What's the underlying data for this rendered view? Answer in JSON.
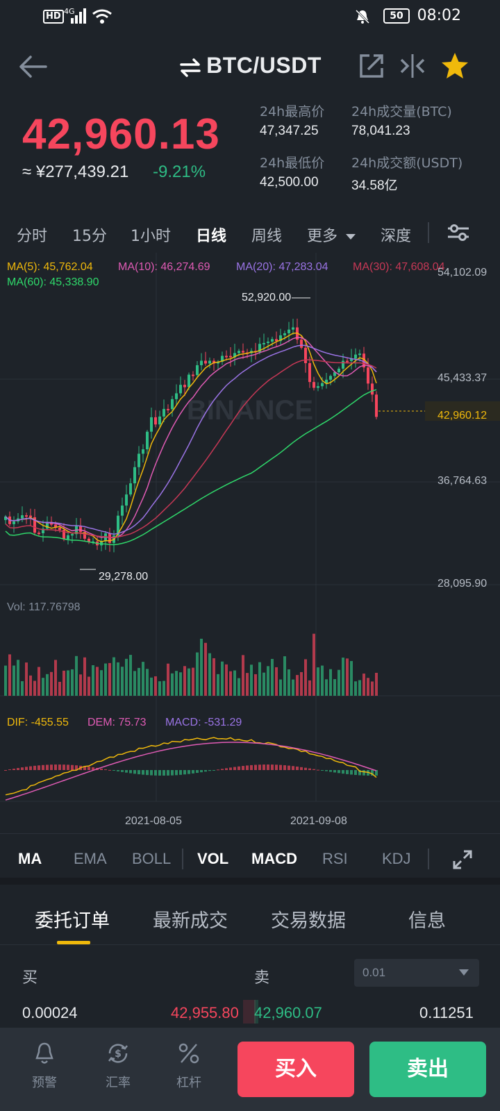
{
  "status_bar": {
    "hd": "HD",
    "network": "4G",
    "battery": "50",
    "time": "08:02"
  },
  "header": {
    "title": "BTC/USDT",
    "icons": [
      "back-arrow-icon",
      "swap-icon",
      "share-icon",
      "compare-icon",
      "star-icon"
    ]
  },
  "ticker": {
    "last_price": "42,960.13",
    "cny_price": "≈ ¥277,439.21",
    "change_pct": "-9.21%",
    "high_label": "24h最高价",
    "high_value": "47,347.25",
    "volume_btc_label": "24h成交量(BTC)",
    "volume_btc_value": "78,041.23",
    "low_label": "24h最低价",
    "low_value": "42,500.00",
    "volume_usdt_label": "24h成交额(USDT)",
    "volume_usdt_value": "34.58亿"
  },
  "interval_tabs": [
    "分时",
    "15分",
    "1小时",
    "日线",
    "周线",
    "更多",
    "深度"
  ],
  "active_interval": "日线",
  "chart_legend": {
    "ma5": "MA(5): 45,762.04",
    "ma10": "MA(10): 46,274.69",
    "ma20": "MA(20): 47,283.04",
    "ma30": "MA(30): 47,608.04",
    "ma60": "MA(60): 45,338.90"
  },
  "chart_axis": {
    "price_ticks": [
      "54,102.09",
      "45,433.37",
      "36,764.63",
      "28,095.90"
    ],
    "current_price_tag": "42,960.12",
    "high_marker": "52,920.00",
    "low_marker": "29,278.00",
    "watermark": "BINANCE",
    "dates": [
      "2021-08-05",
      "2021-09-08"
    ]
  },
  "volume_panel": {
    "label": "Vol: 117.76798"
  },
  "macd_panel": {
    "dif": "DIF: -455.55",
    "dem": "DEM: 75.73",
    "macd": "MACD: -531.29"
  },
  "indicator_tabs": [
    "MA",
    "EMA",
    "BOLL",
    "VOL",
    "MACD",
    "RSI",
    "KDJ"
  ],
  "active_indicators": [
    "MA",
    "VOL",
    "MACD"
  ],
  "order_tabs": [
    "委托订单",
    "最新成交",
    "交易数据",
    "信息"
  ],
  "active_order_tab": "委托订单",
  "order_book": {
    "buy_label": "买",
    "sell_label": "卖",
    "precision": "0.01",
    "rows": [
      {
        "bid_qty": "0.00024",
        "bid_price": "42,955.80",
        "ask_price": "42,960.07",
        "ask_qty": "0.11251"
      }
    ]
  },
  "bottom_nav": {
    "alert": "预警",
    "rate": "汇率",
    "leverage": "杠杆",
    "buy": "买入",
    "sell": "卖出"
  },
  "colors": {
    "background": "#1e2329",
    "up": "#2ebd85",
    "down": "#f6465d",
    "accent": "#f0b90b",
    "ma5": "#f0b90b",
    "ma10": "#e05bb5",
    "ma20": "#9b74e6",
    "ma30": "#c73856",
    "ma60": "#2fd96b"
  }
}
